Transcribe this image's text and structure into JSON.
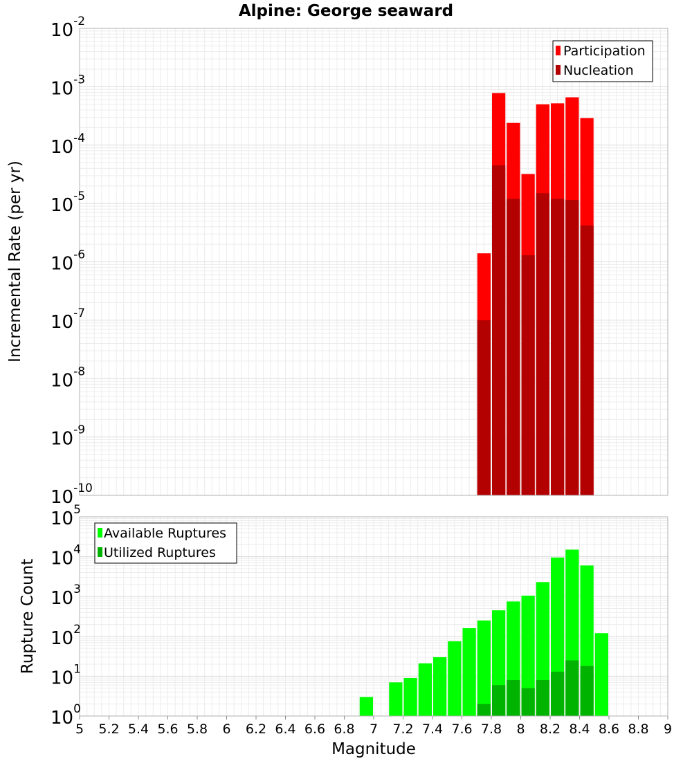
{
  "figure": {
    "title": "Alpine: George seaward",
    "xlabel": "Magnitude"
  },
  "chart_data": [
    {
      "type": "bar",
      "title": "Alpine: George seaward",
      "xlabel": "Magnitude",
      "ylabel": "Incremental Rate (per yr)",
      "yscale": "log",
      "xlim": [
        5,
        9
      ],
      "ylim": [
        1e-10,
        0.01
      ],
      "x_ticks": [
        "5",
        "5.2",
        "5.4",
        "5.6",
        "5.8",
        "6",
        "6.2",
        "6.4",
        "6.6",
        "6.8",
        "7",
        "7.2",
        "7.4",
        "7.6",
        "7.8",
        "8",
        "8.2",
        "8.4",
        "8.6",
        "8.8",
        "9"
      ],
      "y_ticks": [
        {
          "base": "10",
          "exp": "-10"
        },
        {
          "base": "10",
          "exp": "-9"
        },
        {
          "base": "10",
          "exp": "-8"
        },
        {
          "base": "10",
          "exp": "-7"
        },
        {
          "base": "10",
          "exp": "-6"
        },
        {
          "base": "10",
          "exp": "-5"
        },
        {
          "base": "10",
          "exp": "-4"
        },
        {
          "base": "10",
          "exp": "-3"
        },
        {
          "base": "10",
          "exp": "-2"
        }
      ],
      "grid": true,
      "legend_position": "top-right",
      "bar_width": 0.1,
      "series": [
        {
          "name": "Participation",
          "color": "#ff0000",
          "x": [
            7.75,
            7.85,
            7.95,
            8.05,
            8.15,
            8.25,
            8.35,
            8.45
          ],
          "values": [
            1.4e-06,
            0.00078,
            0.00024,
            3.2e-05,
            0.0005,
            0.00052,
            0.00066,
            0.00029
          ]
        },
        {
          "name": "Nucleation",
          "color": "#b30000",
          "x": [
            7.75,
            7.85,
            7.95,
            8.05,
            8.15,
            8.25,
            8.35,
            8.45
          ],
          "values": [
            1e-07,
            4.5e-05,
            1.2e-05,
            1.3e-06,
            1.5e-05,
            1.2e-05,
            1.15e-05,
            4.2e-06
          ]
        }
      ]
    },
    {
      "type": "bar",
      "title": "",
      "xlabel": "Magnitude",
      "ylabel": "Rupture Count",
      "yscale": "log",
      "xlim": [
        5,
        9
      ],
      "ylim": [
        1,
        100000
      ],
      "x_ticks": [
        "5",
        "5.2",
        "5.4",
        "5.6",
        "5.8",
        "6",
        "6.2",
        "6.4",
        "6.6",
        "6.8",
        "7",
        "7.2",
        "7.4",
        "7.6",
        "7.8",
        "8",
        "8.2",
        "8.4",
        "8.6",
        "8.8",
        "9"
      ],
      "y_ticks": [
        {
          "base": "10",
          "exp": "0"
        },
        {
          "base": "10",
          "exp": "1"
        },
        {
          "base": "10",
          "exp": "2"
        },
        {
          "base": "10",
          "exp": "3"
        },
        {
          "base": "10",
          "exp": "4"
        },
        {
          "base": "10",
          "exp": "5"
        }
      ],
      "grid": true,
      "legend_position": "top-left",
      "bar_width": 0.1,
      "series": [
        {
          "name": "Available Ruptures",
          "color": "#00ff00",
          "x": [
            6.65,
            6.85,
            6.95,
            7.05,
            7.15,
            7.25,
            7.35,
            7.45,
            7.55,
            7.65,
            7.75,
            7.85,
            7.95,
            8.05,
            8.15,
            8.25,
            8.35,
            8.45,
            8.55
          ],
          "values": [
            1,
            1,
            3,
            1,
            7,
            9,
            21,
            30,
            75,
            160,
            250,
            450,
            750,
            1050,
            2300,
            9500,
            15000,
            6000,
            120
          ]
        },
        {
          "name": "Utilized Ruptures",
          "color": "#00b300",
          "x": [
            7.75,
            7.85,
            7.95,
            8.05,
            8.15,
            8.25,
            8.35,
            8.45
          ],
          "values": [
            2,
            6,
            8,
            5,
            8,
            13,
            25,
            18
          ]
        }
      ]
    }
  ]
}
